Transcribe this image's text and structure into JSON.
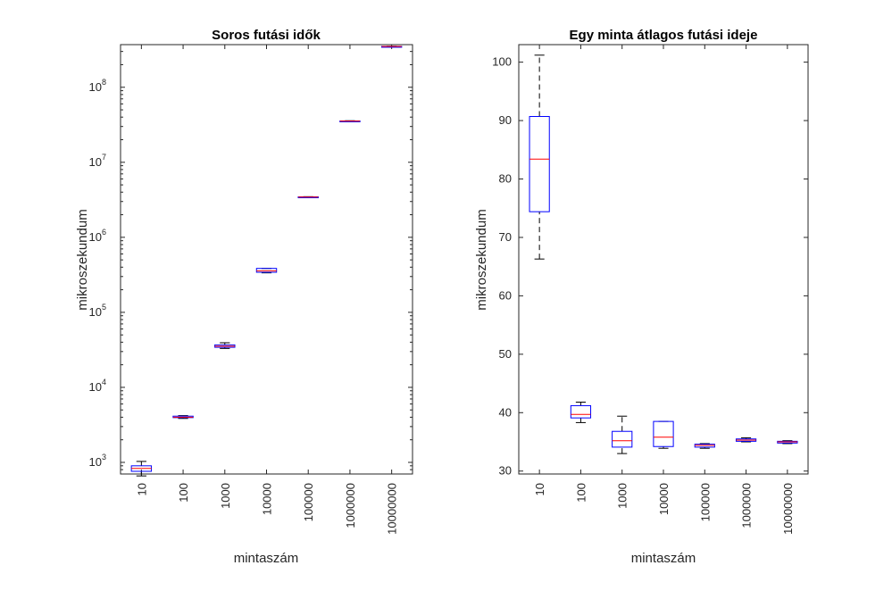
{
  "chart_data": [
    {
      "type": "boxplot",
      "title": "Soros futási idők",
      "xlabel": "mintaszám",
      "ylabel": "mikroszekundum",
      "yscale": "log",
      "ylim": [
        700,
        370000000
      ],
      "categories": [
        "10",
        "100",
        "1000",
        "10000",
        "100000",
        "1000000",
        "10000000"
      ],
      "ytick_labels": [
        {
          "value": 1000,
          "base": "10",
          "exp": "3"
        },
        {
          "value": 10000,
          "base": "10",
          "exp": "4"
        },
        {
          "value": 100000,
          "base": "10",
          "exp": "5"
        },
        {
          "value": 1000000,
          "base": "10",
          "exp": "6"
        },
        {
          "value": 10000000,
          "base": "10",
          "exp": "7"
        },
        {
          "value": 100000000,
          "base": "10",
          "exp": "8"
        }
      ],
      "boxes": [
        {
          "category": "10",
          "min": 660,
          "q1": 760,
          "median": 830,
          "q3": 900,
          "max": 1030
        },
        {
          "category": "100",
          "min": 3850,
          "q1": 3950,
          "median": 4000,
          "q3": 4130,
          "max": 4200
        },
        {
          "category": "1000",
          "min": 33000,
          "q1": 34200,
          "median": 35300,
          "q3": 36800,
          "max": 39300
        },
        {
          "category": "10000",
          "min": 336000,
          "q1": 342000,
          "median": 358000,
          "q3": 385000,
          "max": 385000
        },
        {
          "category": "100000",
          "min": 3380000,
          "q1": 3410000,
          "median": 3440000,
          "q3": 3460000,
          "max": 3480000
        },
        {
          "category": "1000000",
          "min": 35000000,
          "q1": 35200000,
          "median": 35400000,
          "q3": 35600000,
          "max": 35800000
        },
        {
          "category": "10000000",
          "min": 348000000,
          "q1": 349000000,
          "median": 350000000,
          "q3": 351000000,
          "max": 352000000
        }
      ],
      "box_color": "#0000ff",
      "median_color": "#ff0000",
      "whisker_color": "#000000",
      "grid": false
    },
    {
      "type": "boxplot",
      "title": "Egy minta átlagos futási ideje",
      "xlabel": "mintaszám",
      "ylabel": "mikroszekundum",
      "yscale": "linear",
      "ylim": [
        29.5,
        103
      ],
      "yticks": [
        30,
        40,
        50,
        60,
        70,
        80,
        90,
        100
      ],
      "categories": [
        "10",
        "100",
        "1000",
        "10000",
        "100000",
        "1000000",
        "10000000"
      ],
      "boxes": [
        {
          "category": "10",
          "min": 66.3,
          "q1": 74.4,
          "median": 83.4,
          "q3": 90.7,
          "max": 101.2
        },
        {
          "category": "100",
          "min": 38.3,
          "q1": 39.1,
          "median": 39.7,
          "q3": 41.2,
          "max": 41.8
        },
        {
          "category": "1000",
          "min": 33.0,
          "q1": 34.1,
          "median": 35.2,
          "q3": 36.8,
          "max": 39.4
        },
        {
          "category": "10000",
          "min": 33.9,
          "q1": 34.2,
          "median": 35.8,
          "q3": 38.5,
          "max": 38.5
        },
        {
          "category": "100000",
          "min": 33.9,
          "q1": 34.1,
          "median": 34.4,
          "q3": 34.6,
          "max": 34.7
        },
        {
          "category": "1000000",
          "min": 35.0,
          "q1": 35.1,
          "median": 35.3,
          "q3": 35.5,
          "max": 35.7
        },
        {
          "category": "10000000",
          "min": 34.7,
          "q1": 34.8,
          "median": 35.0,
          "q3": 35.1,
          "max": 35.2
        }
      ],
      "box_color": "#0000ff",
      "median_color": "#ff0000",
      "whisker_color": "#000000",
      "grid": false
    }
  ]
}
